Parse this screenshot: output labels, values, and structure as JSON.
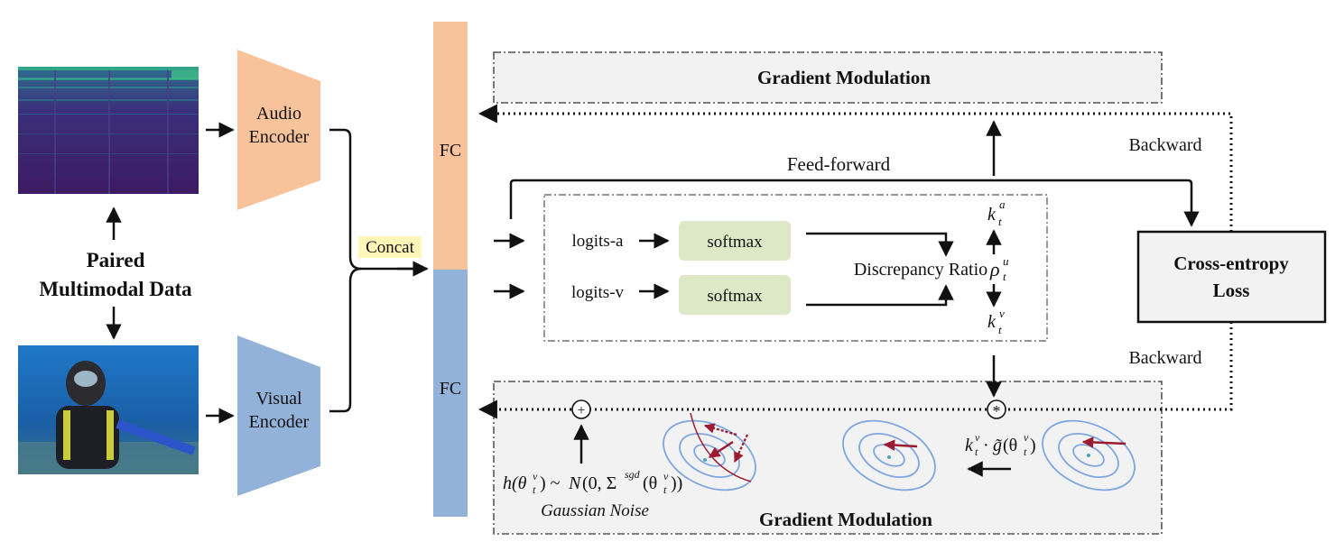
{
  "inputs": {
    "title_line1": "Paired",
    "title_line2": "Multimodal Data"
  },
  "encoders": {
    "audio_line1": "Audio",
    "audio_line2": "Encoder",
    "visual_line1": "Visual",
    "visual_line2": "Encoder"
  },
  "concat_label": "Concat",
  "fc": {
    "top": "FC",
    "bottom": "FC"
  },
  "gradient_modulation_top": "Gradient Modulation",
  "gradient_modulation_bottom": "Gradient Modulation",
  "feed_forward": "Feed-forward",
  "backward_top": "Backward",
  "backward_bottom": "Backward",
  "loss": {
    "line1": "Cross-entropy",
    "line2": "Loss"
  },
  "inner": {
    "logits_a": "logits-a",
    "logits_v": "logits-v",
    "softmax_1": "softmax",
    "softmax_2": "softmax",
    "discrepancy": "Discrepancy Ratio"
  },
  "symbols": {
    "k": "k",
    "sub_t": "t",
    "sup_a": "a",
    "sup_v": "v",
    "rho": "ρ",
    "sup_u": "u",
    "plus": "+",
    "star": "*"
  },
  "formulas": {
    "scaled_grad": "k",
    "noise": "h(θ",
    "noise_label": "Gaussian Noise"
  },
  "colors": {
    "audio": "#f8c39b",
    "visual": "#92b2d9",
    "softmax": "#dde8c6",
    "panel": "#f2f2f2",
    "concat_highlight": "#fff6b8",
    "ellipse": "#7fa7df",
    "arrow_red": "#9b1b30"
  },
  "icons": {
    "spectrogram": "audio-spectrogram-image",
    "diver": "underwater-diver-image"
  }
}
